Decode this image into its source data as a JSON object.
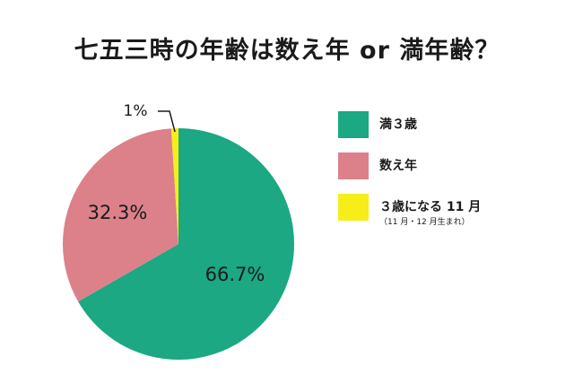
{
  "title": "七五三時の年齢は数え年 or 満年齢？",
  "chart_data": {
    "type": "pie",
    "title": "七五三時の年齢は数え年 or 満年齢？",
    "slices": [
      {
        "label": "満３歳",
        "value": 66.7,
        "value_label": "66.7%",
        "color": "#1ba883",
        "note": ""
      },
      {
        "label": "数え年",
        "value": 32.3,
        "value_label": "32.3%",
        "color": "#dc808a",
        "note": ""
      },
      {
        "label": "３歳になる 11 月",
        "value": 1,
        "value_label": "1%",
        "color": "#f6ee18",
        "note": "（11 月・12 月生まれ）"
      }
    ],
    "legend_position": "right"
  }
}
